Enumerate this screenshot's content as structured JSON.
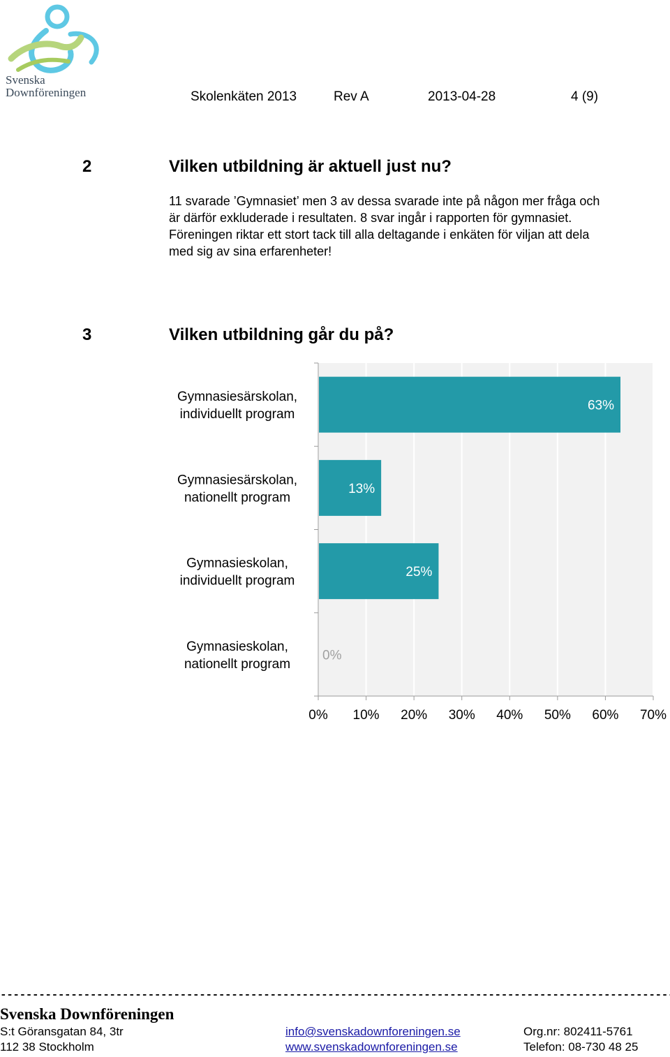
{
  "logo": {
    "line1": "Svenska",
    "line2": "Downföreningen"
  },
  "header": {
    "doc_title": "Skolenkäten 2013",
    "revision": "Rev A",
    "date": "2013-04-28",
    "page": "4 (9)"
  },
  "section2": {
    "number": "2",
    "title": "Vilken utbildning är aktuell just nu?",
    "lines": [
      "11 svarade ’Gymnasiet’ men 3 av dessa svarade inte på någon mer fråga och",
      "är därför exkluderade i resultaten. 8 svar ingår i rapporten för gymnasiet.",
      "Föreningen riktar ett stort tack till alla deltagande i enkäten för viljan att dela",
      "med sig av sina erfarenheter!"
    ]
  },
  "section3": {
    "number": "3",
    "title": "Vilken utbildning går du på?"
  },
  "chart_data": {
    "type": "bar",
    "orientation": "horizontal",
    "categories": [
      [
        "Gymnasiesärskolan,",
        "individuellt program"
      ],
      [
        "Gymnasiesärskolan,",
        "nationellt program"
      ],
      [
        "Gymnasieskolan,",
        "individuellt program"
      ],
      [
        "Gymnasieskolan,",
        "nationellt program"
      ]
    ],
    "values": [
      63,
      13,
      25,
      0
    ],
    "value_labels": [
      "63%",
      "13%",
      "25%",
      "0%"
    ],
    "xlim": [
      0,
      70
    ],
    "xticks": [
      "0%",
      "10%",
      "20%",
      "30%",
      "40%",
      "50%",
      "60%",
      "70%"
    ],
    "grid": true,
    "bar_color": "#239aa8",
    "plot_bg": "#f2f2f2"
  },
  "footer": {
    "dashes": "------------------------------------------------------------------------------------------------------------------------",
    "org_name": "Svenska Downföreningen",
    "address1": "S:t Göransgatan 84, 3tr",
    "address2": "112 38 Stockholm",
    "email": "info@svenskadownforeningen.se",
    "web": "www.svenskadownforeningen.se",
    "orgnr": "Org.nr:  802411-5761",
    "phone": "Telefon: 08-730 48 25"
  }
}
